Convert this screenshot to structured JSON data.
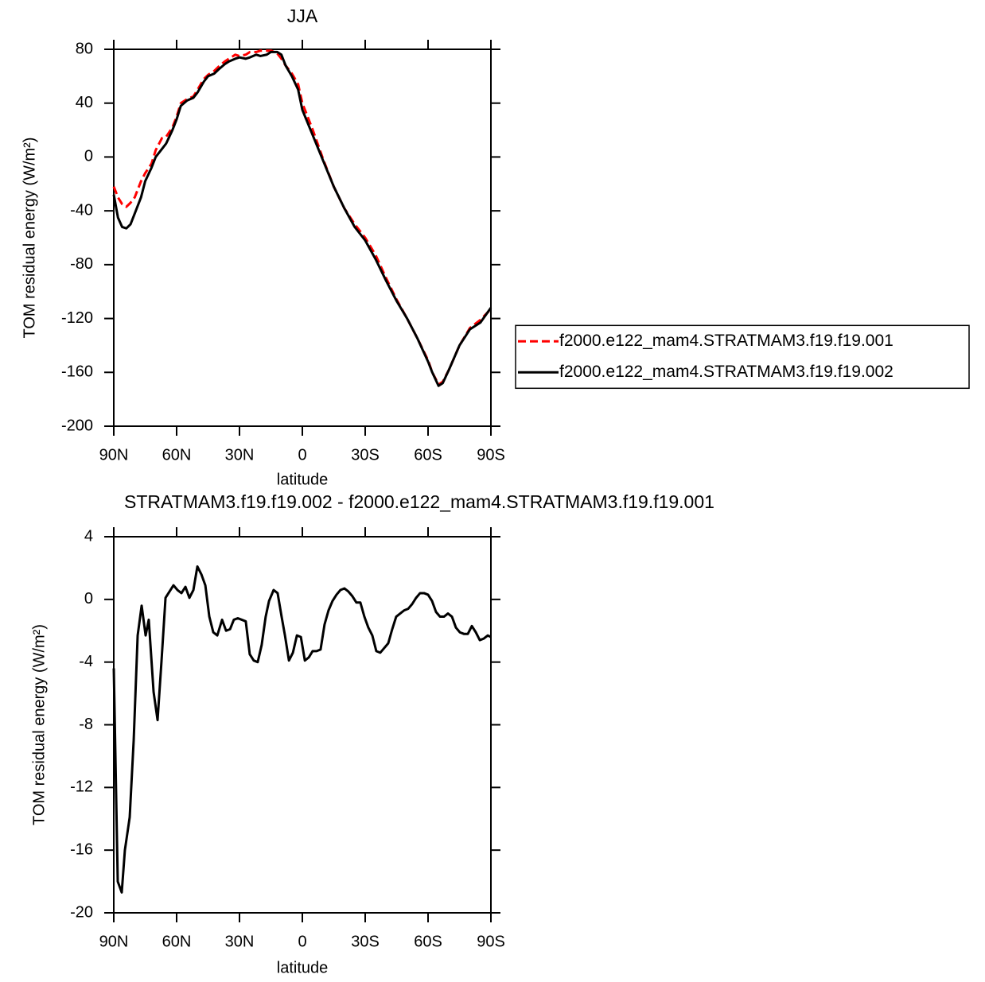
{
  "chart_data": [
    {
      "type": "line",
      "title": "JJA",
      "xlabel": "latitude",
      "ylabel": "TOM residual energy (W/m²)",
      "x": [
        90,
        88,
        86,
        84,
        82,
        80,
        77,
        75,
        72,
        70,
        67,
        65,
        62,
        60,
        58,
        55,
        52,
        50,
        47,
        45,
        42,
        40,
        37,
        35,
        32,
        30,
        27,
        25,
        22,
        20,
        17,
        15,
        12,
        10,
        8,
        5,
        2,
        0,
        -5,
        -10,
        -15,
        -20,
        -25,
        -30,
        -35,
        -40,
        -45,
        -50,
        -55,
        -60,
        -62,
        -65,
        -67,
        -70,
        -75,
        -80,
        -85,
        -90
      ],
      "series": [
        {
          "name": "f2000.e122_mam4.STRATMAM3.f19.f19.001",
          "color": "#ff0000",
          "linestyle": "dashed",
          "values": [
            -22,
            -30,
            -35,
            -37,
            -34,
            -30,
            -18,
            -12,
            -5,
            5,
            14,
            15,
            22,
            30,
            40,
            43,
            45,
            50,
            58,
            61,
            64,
            67,
            71,
            73,
            76,
            75,
            76,
            78,
            78,
            79,
            79,
            79,
            77,
            73,
            68,
            62,
            54,
            40,
            20,
            -2,
            -22,
            -38,
            -50,
            -60,
            -73,
            -90,
            -106,
            -120,
            -135,
            -151,
            -160,
            -169,
            -167,
            -158,
            -140,
            -127,
            -121,
            -113
          ]
        },
        {
          "name": "f2000.e122_mam4.STRATMAM3.f19.f19.002",
          "color": "#000000",
          "linestyle": "solid",
          "values": [
            -28,
            -45,
            -52,
            -53,
            -50,
            -42,
            -30,
            -18,
            -8,
            0,
            6,
            10,
            20,
            28,
            38,
            42,
            44,
            48,
            56,
            60,
            62,
            65,
            69,
            71,
            73,
            74,
            73,
            74,
            76,
            75,
            76,
            78,
            78,
            76,
            68,
            60,
            50,
            35,
            16,
            -3,
            -22,
            -38,
            -52,
            -62,
            -76,
            -92,
            -107,
            -120,
            -135,
            -152,
            -160,
            -170,
            -168,
            -158,
            -140,
            -128,
            -123,
            -112
          ]
        }
      ],
      "xlim": [
        90,
        -90
      ],
      "xticks": [
        {
          "value": 90,
          "label": "90N"
        },
        {
          "value": 60,
          "label": "60N"
        },
        {
          "value": 30,
          "label": "30N"
        },
        0,
        {
          "value": -30,
          "label": "30S"
        },
        {
          "value": -60,
          "label": "60S"
        },
        {
          "value": -90,
          "label": "90S"
        }
      ],
      "ylim": [
        -200,
        80
      ],
      "yticks": [
        -200,
        -160,
        -120,
        -80,
        -40,
        0,
        40,
        80
      ],
      "legend": "right"
    },
    {
      "type": "line",
      "title": "STRATMAM3.f19.f19.002 - f2000.e122_mam4.STRATMAM3.f19.f19.001",
      "xlabel": "latitude",
      "ylabel": "TOM residual energy (W/m²)",
      "x": [
        90,
        88.1,
        86.2,
        84.7,
        82.4,
        80.5,
        78.6,
        76.7,
        74.8,
        73.3,
        71.0,
        69.1,
        67.2,
        65.3,
        61.5,
        59.6,
        57.7,
        55.8,
        53.9,
        52.0,
        50.1,
        48.2,
        46.3,
        44.4,
        42.5,
        40.6,
        38.3,
        36.4,
        34.5,
        32.7,
        30.8,
        28.9,
        27.0,
        25.1,
        23.2,
        21.3,
        19.4,
        17.5,
        15.9,
        13.7,
        11.8,
        9.9,
        8.3,
        6.4,
        4.5,
        2.6,
        0.7,
        -1.2,
        -3.1,
        -4.9,
        -6.8,
        -8.7,
        -10.6,
        -12.5,
        -14.4,
        -16.3,
        -18.2,
        -20.1,
        -22.0,
        -23.9,
        -25.8,
        -27.7,
        -29.6,
        -31.5,
        -33.4,
        -35.3,
        -37.2,
        -39.1,
        -41.0,
        -42.9,
        -44.8,
        -46.7,
        -48.6,
        -50.5,
        -52.4,
        -54.3,
        -56.2,
        -58.1,
        -60.0,
        -61.9,
        -63.8,
        -65.7,
        -67.6,
        -69.5,
        -71.4,
        -73.3,
        -75.2,
        -77.1,
        -79.0,
        -80.9,
        -82.8,
        -84.7,
        -86.6,
        -88.5,
        -90
      ],
      "values": [
        -4.4,
        -18.0,
        -18.7,
        -16.0,
        -13.9,
        -9.0,
        -2.3,
        -0.4,
        -2.3,
        -1.3,
        -5.9,
        -7.7,
        -3.9,
        0.1,
        0.9,
        0.6,
        0.4,
        0.8,
        0.1,
        0.6,
        2.1,
        1.6,
        0.9,
        -1.1,
        -2.1,
        -2.3,
        -1.3,
        -2.0,
        -1.9,
        -1.3,
        -1.2,
        -1.3,
        -1.4,
        -3.5,
        -3.9,
        -4.0,
        -2.9,
        -1.1,
        -0.1,
        0.6,
        0.4,
        -1.1,
        -2.3,
        -3.9,
        -3.4,
        -2.3,
        -2.4,
        -3.9,
        -3.7,
        -3.3,
        -3.3,
        -3.2,
        -1.6,
        -0.7,
        -0.1,
        0.3,
        0.6,
        0.7,
        0.5,
        0.2,
        -0.2,
        -0.2,
        -1.1,
        -1.8,
        -2.3,
        -3.3,
        -3.4,
        -3.1,
        -2.8,
        -1.9,
        -1.1,
        -0.9,
        -0.7,
        -0.6,
        -0.3,
        0.1,
        0.4,
        0.4,
        0.3,
        -0.1,
        -0.8,
        -1.1,
        -1.1,
        -0.9,
        -1.1,
        -1.8,
        -2.1,
        -2.2,
        -2.2,
        -1.7,
        -2.1,
        -2.6,
        -2.5,
        -2.3,
        -2.4
      ],
      "color": "#000000",
      "xlim": [
        90,
        -90
      ],
      "xticks": [
        {
          "value": 90,
          "label": "90N"
        },
        {
          "value": 60,
          "label": "60N"
        },
        {
          "value": 30,
          "label": "30N"
        },
        0,
        {
          "value": -30,
          "label": "30S"
        },
        {
          "value": -60,
          "label": "60S"
        },
        {
          "value": -90,
          "label": "90S"
        }
      ],
      "ylim": [
        -20,
        4
      ],
      "yticks": [
        -20,
        -16,
        -12,
        -8,
        -4,
        0,
        4
      ]
    }
  ]
}
